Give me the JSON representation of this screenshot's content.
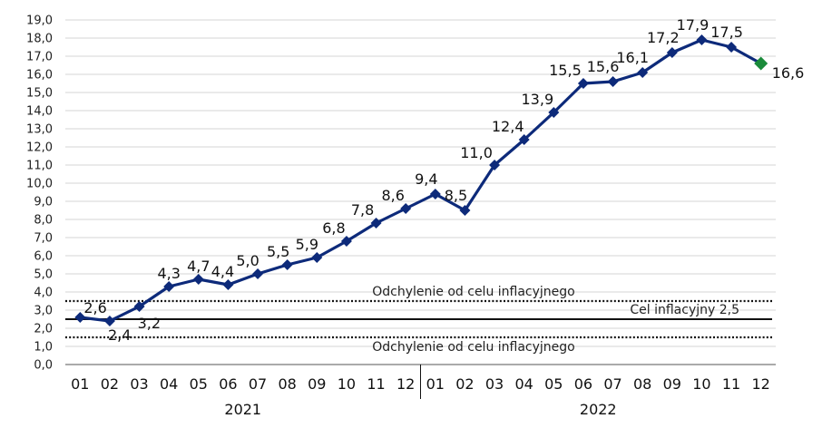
{
  "chart_data": {
    "type": "line",
    "categories": [
      "01",
      "02",
      "03",
      "04",
      "05",
      "06",
      "07",
      "08",
      "09",
      "10",
      "11",
      "12",
      "01",
      "02",
      "03",
      "04",
      "05",
      "06",
      "07",
      "08",
      "09",
      "10",
      "11",
      "12"
    ],
    "year_groups": [
      {
        "label": "2021",
        "start": 0,
        "end": 11
      },
      {
        "label": "2022",
        "start": 12,
        "end": 23
      }
    ],
    "values": [
      2.6,
      2.4,
      3.2,
      4.3,
      4.7,
      4.4,
      5.0,
      5.5,
      5.9,
      6.8,
      7.8,
      8.6,
      9.4,
      8.5,
      11.0,
      12.4,
      13.9,
      15.5,
      15.6,
      16.1,
      17.2,
      17.9,
      17.5,
      16.6
    ],
    "value_labels": [
      "2,6",
      "2,4",
      "3,2",
      "4,3",
      "4,7",
      "4,4",
      "5,0",
      "5,5",
      "5,9",
      "6,8",
      "7,8",
      "8,6",
      "9,4",
      "8,5",
      "11,0",
      "12,4",
      "13,9",
      "15,5",
      "15,6",
      "16,1",
      "17,2",
      "17,9",
      "17,5",
      "16,6"
    ],
    "ylim": [
      0,
      19
    ],
    "yticks": [
      "0,0",
      "1,0",
      "2,0",
      "3,0",
      "4,0",
      "5,0",
      "6,0",
      "7,0",
      "8,0",
      "9,0",
      "10,0",
      "11,0",
      "12,0",
      "13,0",
      "14,0",
      "15,0",
      "16,0",
      "17,0",
      "18,0",
      "19,0"
    ],
    "reference_lines": [
      {
        "value": 3.5,
        "style": "dotted",
        "label": "Odchylenie od celu inflacyjnego"
      },
      {
        "value": 2.5,
        "style": "solid",
        "label": "Cel inflacyjny 2,5"
      },
      {
        "value": 1.5,
        "style": "dotted",
        "label": "Odchylenie od celu inflacyjnego"
      }
    ],
    "grid": true,
    "line_color": "#0d2a7a",
    "marker_color": "#0d2a7a",
    "last_marker_color": "#1a8a3a"
  }
}
